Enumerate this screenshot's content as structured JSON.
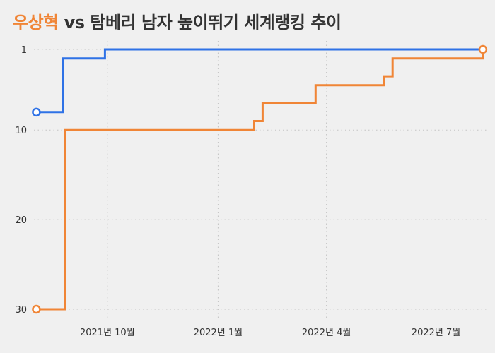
{
  "title": {
    "highlight": "우상혁",
    "rest": " vs 탐베리 남자 높이뛰기 세계랭킹 추이"
  },
  "colors": {
    "background": "#f0f0f0",
    "grid": "#c4c4c4",
    "text": "#333333",
    "woo": "#f08536",
    "tamberi": "#2f72e6"
  },
  "chart_data": {
    "type": "line",
    "step": true,
    "title": "우상혁 vs 탐베리 남자 높이뛰기 세계랭킹 추이",
    "xlabel": "",
    "ylabel": "",
    "y_reversed": true,
    "ylim": [
      1,
      30
    ],
    "xlim": [
      "2021-08-01",
      "2022-08-12"
    ],
    "x_ticks": [
      {
        "date": "2021-10-01",
        "label": "2021년 10월"
      },
      {
        "date": "2022-01-01",
        "label": "2022년 1월"
      },
      {
        "date": "2022-04-01",
        "label": "2022년 4월"
      },
      {
        "date": "2022-07-01",
        "label": "2022년 7월"
      }
    ],
    "y_ticks": [
      1,
      10,
      20,
      30
    ],
    "grid": true,
    "series": [
      {
        "name": "우상혁",
        "color": "#f08536",
        "points": [
          {
            "x": "2021-08-03",
            "y": 30
          },
          {
            "x": "2021-08-27",
            "y": 10
          },
          {
            "x": "2022-01-31",
            "y": 9
          },
          {
            "x": "2022-02-07",
            "y": 7
          },
          {
            "x": "2022-03-23",
            "y": 5
          },
          {
            "x": "2022-05-19",
            "y": 4
          },
          {
            "x": "2022-05-26",
            "y": 2
          },
          {
            "x": "2022-08-09",
            "y": 1
          }
        ],
        "end": "2022-08-09"
      },
      {
        "name": "탐베리",
        "color": "#2f72e6",
        "points": [
          {
            "x": "2021-08-03",
            "y": 8
          },
          {
            "x": "2021-08-25",
            "y": 2
          },
          {
            "x": "2021-09-29",
            "y": 1
          }
        ],
        "end": "2022-08-09"
      }
    ]
  }
}
